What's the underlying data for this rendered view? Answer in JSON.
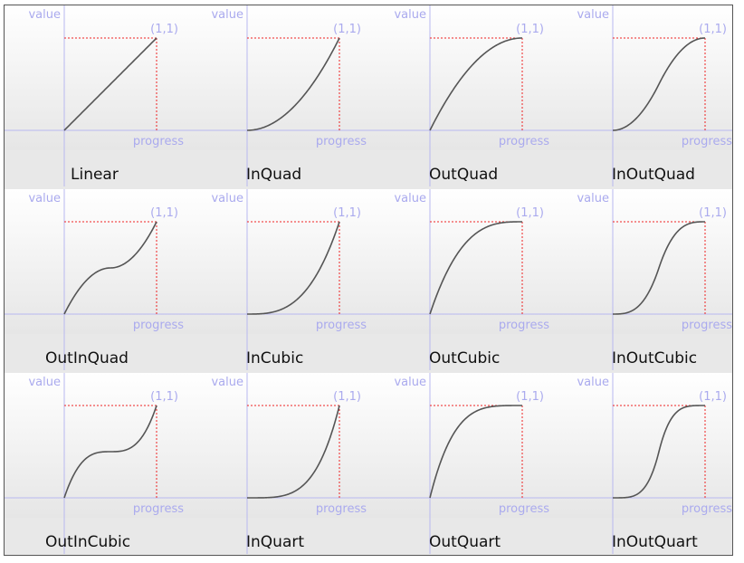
{
  "chart_data": {
    "type": "line",
    "axis_x_label": "progress",
    "axis_y_label": "value",
    "corner_label": "(1,1)",
    "x_range": [
      0,
      1
    ],
    "y_range": [
      0,
      1
    ],
    "grid": false,
    "colors": {
      "curve": "#555555",
      "axes": "#b8b8f0",
      "axis_text": "#aaaaee",
      "guides": "#ee2222",
      "tile_top": "#ffffff",
      "tile_bottom": "#e6e6e6",
      "label_band": "#e8e8e8"
    },
    "curves": [
      {
        "name": "Linear"
      },
      {
        "name": "InQuad"
      },
      {
        "name": "OutQuad"
      },
      {
        "name": "InOutQuad"
      },
      {
        "name": "OutInQuad"
      },
      {
        "name": "InCubic"
      },
      {
        "name": "OutCubic"
      },
      {
        "name": "InOutCubic"
      },
      {
        "name": "OutInCubic"
      },
      {
        "name": "InQuart"
      },
      {
        "name": "OutQuart"
      },
      {
        "name": "InOutQuart"
      }
    ]
  }
}
